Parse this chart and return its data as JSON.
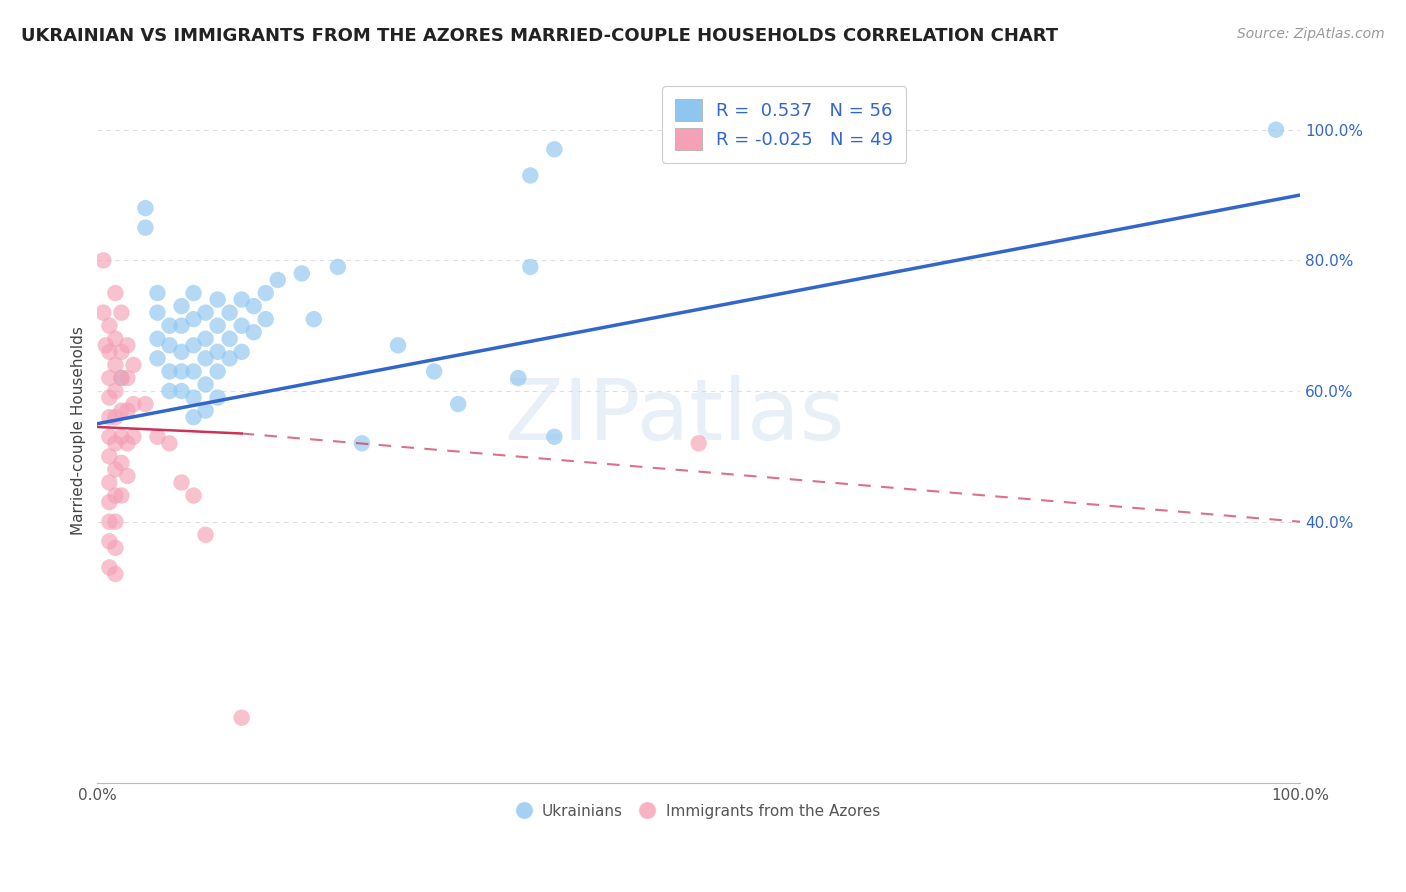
{
  "title": "UKRAINIAN VS IMMIGRANTS FROM THE AZORES MARRIED-COUPLE HOUSEHOLDS CORRELATION CHART",
  "source": "Source: ZipAtlas.com",
  "ylabel": "Married-couple Households",
  "watermark": "ZIPatlas",
  "legend": {
    "blue_R": 0.537,
    "blue_N": 56,
    "pink_R": -0.025,
    "pink_N": 49
  },
  "blue_scatter": [
    [
      0.02,
      0.62
    ],
    [
      0.04,
      0.88
    ],
    [
      0.04,
      0.85
    ],
    [
      0.05,
      0.75
    ],
    [
      0.05,
      0.72
    ],
    [
      0.05,
      0.68
    ],
    [
      0.05,
      0.65
    ],
    [
      0.06,
      0.7
    ],
    [
      0.06,
      0.67
    ],
    [
      0.06,
      0.63
    ],
    [
      0.06,
      0.6
    ],
    [
      0.07,
      0.73
    ],
    [
      0.07,
      0.7
    ],
    [
      0.07,
      0.66
    ],
    [
      0.07,
      0.63
    ],
    [
      0.07,
      0.6
    ],
    [
      0.08,
      0.75
    ],
    [
      0.08,
      0.71
    ],
    [
      0.08,
      0.67
    ],
    [
      0.08,
      0.63
    ],
    [
      0.08,
      0.59
    ],
    [
      0.08,
      0.56
    ],
    [
      0.09,
      0.72
    ],
    [
      0.09,
      0.68
    ],
    [
      0.09,
      0.65
    ],
    [
      0.09,
      0.61
    ],
    [
      0.09,
      0.57
    ],
    [
      0.1,
      0.74
    ],
    [
      0.1,
      0.7
    ],
    [
      0.1,
      0.66
    ],
    [
      0.1,
      0.63
    ],
    [
      0.1,
      0.59
    ],
    [
      0.11,
      0.72
    ],
    [
      0.11,
      0.68
    ],
    [
      0.11,
      0.65
    ],
    [
      0.12,
      0.74
    ],
    [
      0.12,
      0.7
    ],
    [
      0.12,
      0.66
    ],
    [
      0.13,
      0.73
    ],
    [
      0.13,
      0.69
    ],
    [
      0.14,
      0.75
    ],
    [
      0.14,
      0.71
    ],
    [
      0.15,
      0.77
    ],
    [
      0.17,
      0.78
    ],
    [
      0.18,
      0.71
    ],
    [
      0.2,
      0.79
    ],
    [
      0.22,
      0.52
    ],
    [
      0.25,
      0.67
    ],
    [
      0.28,
      0.63
    ],
    [
      0.3,
      0.58
    ],
    [
      0.35,
      0.62
    ],
    [
      0.36,
      0.79
    ],
    [
      0.36,
      0.93
    ],
    [
      0.38,
      0.97
    ],
    [
      0.38,
      0.53
    ],
    [
      0.98,
      1.0
    ]
  ],
  "pink_scatter": [
    [
      0.005,
      0.8
    ],
    [
      0.005,
      0.72
    ],
    [
      0.007,
      0.67
    ],
    [
      0.01,
      0.7
    ],
    [
      0.01,
      0.66
    ],
    [
      0.01,
      0.62
    ],
    [
      0.01,
      0.59
    ],
    [
      0.01,
      0.56
    ],
    [
      0.01,
      0.53
    ],
    [
      0.01,
      0.5
    ],
    [
      0.01,
      0.46
    ],
    [
      0.01,
      0.43
    ],
    [
      0.01,
      0.4
    ],
    [
      0.01,
      0.37
    ],
    [
      0.01,
      0.33
    ],
    [
      0.015,
      0.75
    ],
    [
      0.015,
      0.68
    ],
    [
      0.015,
      0.64
    ],
    [
      0.015,
      0.6
    ],
    [
      0.015,
      0.56
    ],
    [
      0.015,
      0.52
    ],
    [
      0.015,
      0.48
    ],
    [
      0.015,
      0.44
    ],
    [
      0.015,
      0.4
    ],
    [
      0.015,
      0.36
    ],
    [
      0.015,
      0.32
    ],
    [
      0.02,
      0.72
    ],
    [
      0.02,
      0.66
    ],
    [
      0.02,
      0.62
    ],
    [
      0.02,
      0.57
    ],
    [
      0.02,
      0.53
    ],
    [
      0.02,
      0.49
    ],
    [
      0.02,
      0.44
    ],
    [
      0.025,
      0.67
    ],
    [
      0.025,
      0.62
    ],
    [
      0.025,
      0.57
    ],
    [
      0.025,
      0.52
    ],
    [
      0.025,
      0.47
    ],
    [
      0.03,
      0.64
    ],
    [
      0.03,
      0.58
    ],
    [
      0.03,
      0.53
    ],
    [
      0.04,
      0.58
    ],
    [
      0.05,
      0.53
    ],
    [
      0.06,
      0.52
    ],
    [
      0.07,
      0.46
    ],
    [
      0.08,
      0.44
    ],
    [
      0.09,
      0.38
    ],
    [
      0.12,
      0.1
    ],
    [
      0.5,
      0.52
    ]
  ],
  "blue_trendline": [
    [
      0.0,
      0.55
    ],
    [
      1.0,
      0.9
    ]
  ],
  "pink_trendline_solid": [
    [
      0.0,
      0.545
    ],
    [
      0.12,
      0.535
    ]
  ],
  "pink_trendline_dashed": [
    [
      0.12,
      0.535
    ],
    [
      1.0,
      0.4
    ]
  ],
  "blue_color": "#8EC6F0",
  "pink_color": "#F4A0B5",
  "blue_line_color": "#3366CC",
  "pink_line_solid_color": "#CC3355",
  "pink_line_dashed_color": "#CC3355",
  "background_color": "#FFFFFF",
  "grid_color": "#DDDDDD",
  "xlim": [
    0.0,
    1.0
  ],
  "ylim_min": 0.0,
  "ylim_max": 1.08,
  "yticks": [
    0.4,
    0.6,
    0.8,
    1.0
  ],
  "ytick_labels": [
    "40.0%",
    "60.0%",
    "80.0%",
    "100.0%"
  ],
  "xtick_positions": [
    0.0,
    0.25,
    0.5,
    0.75,
    1.0
  ],
  "xtick_labels": [
    "0.0%",
    "",
    "",
    "",
    "100.0%"
  ],
  "tick_color": "#3366CC",
  "title_fontsize": 13,
  "source_fontsize": 10
}
